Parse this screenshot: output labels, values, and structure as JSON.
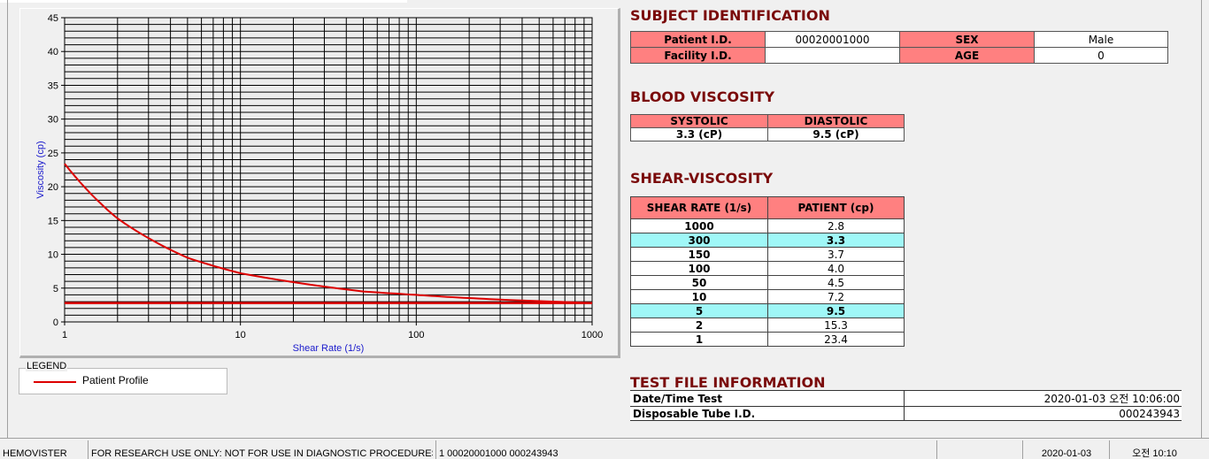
{
  "chart_data": {
    "type": "line",
    "xlabel": "Shear Rate (1/s)",
    "ylabel": "Viscosity (cp)",
    "xscale": "log",
    "xlim": [
      1,
      1000
    ],
    "ylim": [
      0,
      45
    ],
    "xticks": [
      "1",
      "10",
      "100",
      "1000"
    ],
    "yticks": [
      "0",
      "5",
      "10",
      "15",
      "20",
      "25",
      "30",
      "35",
      "40",
      "45"
    ],
    "grid": true,
    "series": [
      {
        "name": "Patient Profile",
        "color": "#dd0000",
        "x": [
          1,
          2,
          5,
          10,
          50,
          100,
          150,
          300,
          1000
        ],
        "y": [
          23.4,
          15.3,
          9.5,
          7.2,
          4.5,
          4.0,
          3.7,
          3.3,
          2.8
        ]
      }
    ],
    "hline": 2.8,
    "legend_title": "LEGEND"
  },
  "subject": {
    "title": "SUBJECT IDENTIFICATION",
    "patient_label": "Patient I.D.",
    "patient_value": "00020001000",
    "sex_label": "SEX",
    "sex_value": "Male",
    "facility_label": "Facility I.D.",
    "facility_value": "",
    "age_label": "AGE",
    "age_value": "0"
  },
  "blood": {
    "title": "BLOOD VISCOSITY",
    "systolic_label": "SYSTOLIC",
    "diastolic_label": "DIASTOLIC",
    "systolic_value": "3.3 (cP)",
    "diastolic_value": "9.5 (cP)"
  },
  "shear": {
    "title": "SHEAR-VISCOSITY",
    "col1": "SHEAR RATE (1/s)",
    "col2": "PATIENT (cp)",
    "rows": [
      {
        "rate": "1000",
        "val": "2.8"
      },
      {
        "rate": "300",
        "val": "3.3",
        "hl": true
      },
      {
        "rate": "150",
        "val": "3.7"
      },
      {
        "rate": "100",
        "val": "4.0"
      },
      {
        "rate": "50",
        "val": "4.5"
      },
      {
        "rate": "10",
        "val": "7.2"
      },
      {
        "rate": "5",
        "val": "9.5",
        "hl": true
      },
      {
        "rate": "2",
        "val": "15.3"
      },
      {
        "rate": "1",
        "val": "23.4"
      }
    ],
    "highlight": "#9ff7f7"
  },
  "testfile": {
    "title": "TEST FILE INFORMATION",
    "date_label": "Date/Time Test",
    "date_value": "2020-01-03   오전 10:06:00",
    "tube_label": "Disposable Tube I.D.",
    "tube_value": "000243943"
  },
  "status": {
    "app": "HEMOVISTER",
    "notice": "FOR RESEARCH USE ONLY: NOT FOR USE IN DIAGNOSTIC PROCEDURES",
    "record": "1  00020001000  000243943",
    "empty": "",
    "date": "2020-01-03",
    "time": "오전 10:10"
  }
}
